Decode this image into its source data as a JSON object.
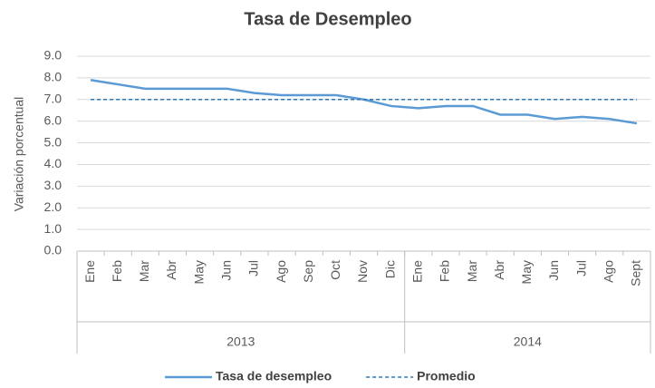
{
  "chart_data": {
    "type": "line",
    "title": "Tasa de Desempleo",
    "y_label": "Variación porcentual",
    "category_groups": [
      {
        "name": "2013",
        "categories": [
          "Ene",
          "Feb",
          "Mar",
          "Abr",
          "May",
          "Jun",
          "Jul",
          "Ago",
          "Sep",
          "Oct",
          "Nov",
          "Dic"
        ]
      },
      {
        "name": "2014",
        "categories": [
          "Ene",
          "Feb",
          "Mar",
          "Abr",
          "May",
          "Jun",
          "Jul",
          "Ago",
          "Sept"
        ]
      }
    ],
    "series": [
      {
        "name": "Tasa de desempleo",
        "color": "#5b9bd5",
        "dash": false,
        "values": [
          7.9,
          7.7,
          7.5,
          7.5,
          7.5,
          7.5,
          7.3,
          7.2,
          7.2,
          7.2,
          7.0,
          6.7,
          6.6,
          6.7,
          6.7,
          6.3,
          6.3,
          6.1,
          6.2,
          6.1,
          5.9
        ]
      },
      {
        "name": "Promedio",
        "color": "#2e75b6",
        "dash": true,
        "values": [
          7.0,
          7.0,
          7.0,
          7.0,
          7.0,
          7.0,
          7.0,
          7.0,
          7.0,
          7.0,
          7.0,
          7.0,
          7.0,
          7.0,
          7.0,
          7.0,
          7.0,
          7.0,
          7.0,
          7.0,
          7.0
        ]
      }
    ],
    "ylim": [
      0,
      9
    ],
    "yticks": [
      {
        "value": 0,
        "label": "0.0"
      },
      {
        "value": 1,
        "label": "1.0"
      },
      {
        "value": 2,
        "label": "2.0"
      },
      {
        "value": 3,
        "label": "3.0"
      },
      {
        "value": 4,
        "label": "4.0"
      },
      {
        "value": 5,
        "label": "5.0"
      },
      {
        "value": 6,
        "label": "6.0"
      },
      {
        "value": 7,
        "label": "7.0"
      },
      {
        "value": 8,
        "label": "8.0"
      },
      {
        "value": 9,
        "label": "9.0"
      }
    ],
    "grid": true
  }
}
